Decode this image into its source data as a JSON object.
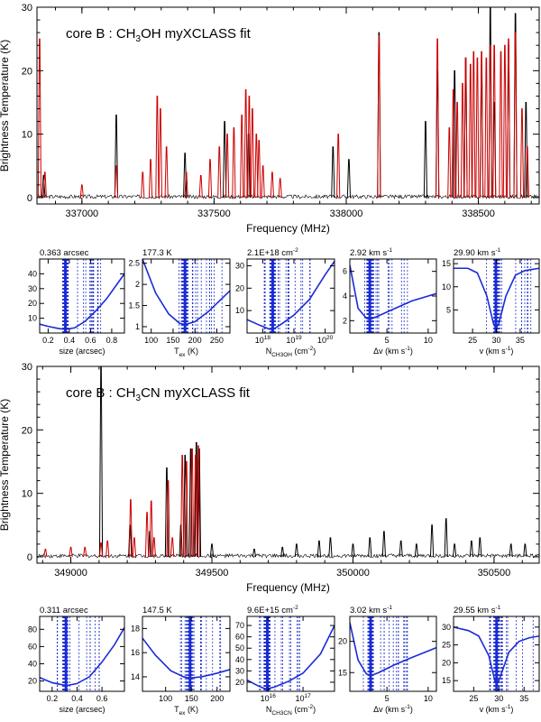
{
  "chart_data": [
    {
      "type": "line",
      "title": "core B : CH3OH myXCLASS fit",
      "title_parts": {
        "prefix": "core B : CH",
        "sub": "3",
        "suffix": "OH myXCLASS fit"
      },
      "xlabel": "Frequency (MHz)",
      "ylabel": "Brightness Temperature (K)",
      "xlim": [
        336830,
        338730
      ],
      "ylim": [
        -1,
        30
      ],
      "x_ticks": [
        337000,
        337500,
        338000,
        338500
      ],
      "y_ticks": [
        0,
        10,
        20,
        30
      ],
      "series": [
        {
          "name": "",
          "color": "#000000",
          "lines": [
            [
              336855,
              3.5
            ],
            [
              337130,
              13
            ],
            [
              337390,
              7
            ],
            [
              337540,
              12
            ],
            [
              337630,
              10
            ],
            [
              337950,
              8
            ],
            [
              338010,
              6
            ],
            [
              338124,
              26
            ],
            [
              338300,
              12
            ],
            [
              338345,
              20
            ],
            [
              338410,
              20
            ],
            [
              338452,
              22
            ],
            [
              338512,
              21
            ],
            [
              338545,
              30
            ],
            [
              338560,
              15
            ],
            [
              338614,
              24
            ],
            [
              338640,
              29
            ],
            [
              338680,
              15
            ]
          ]
        },
        {
          "name": "",
          "color": "#cc0000",
          "lines": [
            [
              336840,
              25
            ],
            [
              336860,
              4
            ],
            [
              337000,
              2
            ],
            [
              337130,
              5
            ],
            [
              337230,
              4
            ],
            [
              337260,
              6
            ],
            [
              337285,
              16
            ],
            [
              337297,
              14
            ],
            [
              337320,
              8
            ],
            [
              337395,
              4
            ],
            [
              337450,
              3.5
            ],
            [
              337485,
              6
            ],
            [
              337520,
              8
            ],
            [
              337550,
              10
            ],
            [
              337575,
              11
            ],
            [
              337605,
              13
            ],
            [
              337620,
              17
            ],
            [
              337633,
              16
            ],
            [
              337645,
              14
            ],
            [
              337660,
              10
            ],
            [
              337670,
              9
            ],
            [
              337685,
              5
            ],
            [
              337720,
              4
            ],
            [
              337750,
              3
            ],
            [
              337970,
              10
            ],
            [
              338124,
              25.5
            ],
            [
              338345,
              25
            ],
            [
              338390,
              11
            ],
            [
              338405,
              17
            ],
            [
              338420,
              15
            ],
            [
              338440,
              18
            ],
            [
              338452,
              22
            ],
            [
              338470,
              21
            ],
            [
              338482,
              23
            ],
            [
              338496,
              22
            ],
            [
              338512,
              23
            ],
            [
              338530,
              22
            ],
            [
              338545,
              24
            ],
            [
              338560,
              24
            ],
            [
              338585,
              23
            ],
            [
              338600,
              24
            ],
            [
              338614,
              25
            ],
            [
              338640,
              26
            ],
            [
              338665,
              14
            ],
            [
              338685,
              8
            ]
          ]
        }
      ]
    },
    {
      "type": "line",
      "title": "",
      "xlabel": "size (arcsec)",
      "header": "0.363 arcsec",
      "xlim": [
        0.12,
        0.92
      ],
      "ylim": [
        0,
        50
      ],
      "x_ticks": [
        0.2,
        0.4,
        0.6,
        0.8
      ],
      "y_ticks": [
        10,
        20,
        30,
        40
      ],
      "best": 0.363,
      "curve": [
        [
          0.12,
          6
        ],
        [
          0.2,
          4.5
        ],
        [
          0.3,
          3
        ],
        [
          0.363,
          2.5
        ],
        [
          0.45,
          3.5
        ],
        [
          0.55,
          8
        ],
        [
          0.65,
          15
        ],
        [
          0.75,
          23
        ],
        [
          0.85,
          33
        ],
        [
          0.92,
          40
        ]
      ]
    },
    {
      "type": "line",
      "title": "",
      "xlabel": "Tex (K)",
      "xlabel_parts": {
        "main": "T",
        "sub": "ex",
        "suffix": " (K)"
      },
      "header": "177.3 K",
      "xlim": [
        80,
        280
      ],
      "ylim": [
        0.85,
        2.6
      ],
      "x_ticks": [
        100,
        150,
        200,
        250
      ],
      "y_ticks": [
        1,
        1.5,
        2,
        2.5
      ],
      "best": 177.3,
      "curve": [
        [
          80,
          2.6
        ],
        [
          110,
          1.8
        ],
        [
          140,
          1.3
        ],
        [
          165,
          1.08
        ],
        [
          177.3,
          1.05
        ],
        [
          200,
          1.12
        ],
        [
          230,
          1.35
        ],
        [
          260,
          1.65
        ],
        [
          280,
          1.85
        ]
      ]
    },
    {
      "type": "line",
      "title": "",
      "xlabel": "N_CH3OH (cm^-2)",
      "xlabel_parts": {
        "main": "N",
        "sub": "CH3OH",
        "suffix": " (cm  )",
        "sup": "-2"
      },
      "header": "2.1E+18 cm-2",
      "header_parts": {
        "main": "2.1E+18 cm",
        "sup": "-2"
      },
      "xlog": true,
      "xlim": [
        17.5,
        20.3
      ],
      "ylim": [
        0,
        33
      ],
      "x_ticks": [
        18,
        19,
        20
      ],
      "x_tick_labels": [
        "10",
        "10",
        "10"
      ],
      "x_tick_exps": [
        "18",
        "19",
        "20"
      ],
      "y_ticks": [
        10,
        20,
        30
      ],
      "best": 18.32,
      "curve": [
        [
          17.5,
          6
        ],
        [
          17.9,
          3.5
        ],
        [
          18.2,
          1.8
        ],
        [
          18.32,
          1.5
        ],
        [
          18.6,
          4
        ],
        [
          19,
          8
        ],
        [
          19.5,
          15
        ],
        [
          20,
          26
        ],
        [
          20.3,
          32
        ]
      ]
    },
    {
      "type": "line",
      "title": "",
      "xlabel": "Δv (km s^-1)",
      "xlabel_parts": {
        "main": "Δv (km s",
        "sup": "-1",
        "suffix": ")"
      },
      "header": "2.92 km s-1",
      "header_parts": {
        "main": "2.92 km s",
        "sup": "-1"
      },
      "xlim": [
        0.5,
        11
      ],
      "ylim": [
        1,
        7
      ],
      "x_ticks": [
        5,
        10
      ],
      "y_ticks": [
        2,
        4,
        6
      ],
      "best": 2.92,
      "curve": [
        [
          0.5,
          6.5
        ],
        [
          1.5,
          3
        ],
        [
          2.5,
          2.2
        ],
        [
          2.92,
          2.1
        ],
        [
          4,
          2.4
        ],
        [
          6,
          3
        ],
        [
          8,
          3.6
        ],
        [
          11,
          4.2
        ]
      ]
    },
    {
      "type": "line",
      "title": "",
      "xlabel": "v (km s^-1)",
      "xlabel_parts": {
        "main": "v (km s",
        "sup": "-1",
        "suffix": ")"
      },
      "header": "29.90 km s-1",
      "header_parts": {
        "main": "29.90 km s",
        "sup": "-1"
      },
      "xlim": [
        21,
        39
      ],
      "ylim": [
        0,
        16
      ],
      "x_ticks": [
        25,
        30,
        35
      ],
      "y_ticks": [
        5,
        10,
        15
      ],
      "best": 29.9,
      "curve": [
        [
          21,
          14
        ],
        [
          24,
          14
        ],
        [
          26,
          13
        ],
        [
          28,
          8
        ],
        [
          29.4,
          2
        ],
        [
          29.9,
          1
        ],
        [
          30.5,
          2
        ],
        [
          32,
          8
        ],
        [
          34,
          12.5
        ],
        [
          36,
          13.5
        ],
        [
          39,
          14
        ]
      ]
    },
    {
      "type": "line",
      "title": "core B : CH3CN myXCLASS fit",
      "title_parts": {
        "prefix": "core B : CH",
        "sub": "3",
        "suffix": "CN myXCLASS fit"
      },
      "xlabel": "Frequency (MHz)",
      "ylabel": "Brightness Temperature (K)",
      "xlim": [
        348880,
        350660
      ],
      "ylim": [
        -1,
        30
      ],
      "x_ticks": [
        349000,
        349500,
        350000,
        350500
      ],
      "y_ticks": [
        0,
        10,
        20,
        30
      ],
      "series": [
        {
          "name": "",
          "color": "#000000",
          "lines": [
            [
              349107,
              30
            ],
            [
              349210,
              5
            ],
            [
              349280,
              4
            ],
            [
              349340,
              14
            ],
            [
              349390,
              5
            ],
            [
              349405,
              16
            ],
            [
              349425,
              17
            ],
            [
              349445,
              18
            ],
            [
              349455,
              17
            ],
            [
              349500,
              2
            ],
            [
              349650,
              1.2
            ],
            [
              349750,
              1.5
            ],
            [
              349800,
              2
            ],
            [
              349880,
              2.5
            ],
            [
              349920,
              3
            ],
            [
              350000,
              2
            ],
            [
              350060,
              3
            ],
            [
              350110,
              4
            ],
            [
              350170,
              2.5
            ],
            [
              350225,
              2
            ],
            [
              350280,
              5
            ],
            [
              350330,
              6
            ],
            [
              350360,
              2
            ],
            [
              350420,
              2.5
            ],
            [
              350450,
              3
            ],
            [
              350560,
              2
            ],
            [
              350610,
              2
            ]
          ]
        },
        {
          "name": "",
          "color": "#cc0000",
          "lines": [
            [
              348910,
              1.2
            ],
            [
              349000,
              1.5
            ],
            [
              349050,
              1.5
            ],
            [
              349107,
              2.2
            ],
            [
              349130,
              2.5
            ],
            [
              349212,
              9
            ],
            [
              349225,
              3
            ],
            [
              349270,
              7
            ],
            [
              349285,
              8.8
            ],
            [
              349295,
              3
            ],
            [
              349345,
              12
            ],
            [
              349360,
              3
            ],
            [
              349395,
              16
            ],
            [
              349410,
              15
            ],
            [
              349430,
              17
            ],
            [
              349442,
              16
            ],
            [
              349452,
              17.5
            ]
          ]
        }
      ]
    },
    {
      "type": "line",
      "title": "",
      "xlabel": "size (arcsec)",
      "header": "0.311 arcsec",
      "xlim": [
        0.1,
        0.78
      ],
      "ylim": [
        8,
        95
      ],
      "x_ticks": [
        0.2,
        0.4,
        0.6
      ],
      "y_ticks": [
        20,
        40,
        60,
        80
      ],
      "best": 0.311,
      "curve": [
        [
          0.1,
          24
        ],
        [
          0.2,
          18
        ],
        [
          0.3,
          15
        ],
        [
          0.311,
          14.5
        ],
        [
          0.4,
          17
        ],
        [
          0.5,
          25
        ],
        [
          0.6,
          42
        ],
        [
          0.7,
          62
        ],
        [
          0.78,
          82
        ]
      ]
    },
    {
      "type": "line",
      "title": "",
      "xlabel": "Tex (K)",
      "xlabel_parts": {
        "main": "T",
        "sub": "ex",
        "suffix": " (K)"
      },
      "header": "147.5 K",
      "xlim": [
        55,
        225
      ],
      "ylim": [
        12.8,
        19
      ],
      "x_ticks": [
        100,
        150,
        200
      ],
      "y_ticks": [
        14,
        16,
        18
      ],
      "best": 147.5,
      "curve": [
        [
          55,
          17.2
        ],
        [
          80,
          15.8
        ],
        [
          110,
          14.5
        ],
        [
          135,
          14.0
        ],
        [
          147.5,
          13.9
        ],
        [
          170,
          14.0
        ],
        [
          200,
          14.3
        ],
        [
          225,
          14.6
        ]
      ]
    },
    {
      "type": "line",
      "title": "",
      "xlabel": "N_CH3CN (cm^-2)",
      "xlabel_parts": {
        "main": "N",
        "sub": "CH3CN",
        "suffix": " (cm  )",
        "sup": "-2"
      },
      "header": "9.6E+15 cm-2",
      "header_parts": {
        "main": "9.6E+15 cm",
        "sup": "-2"
      },
      "xlog": true,
      "xlim": [
        15.4,
        17.9
      ],
      "ylim": [
        12,
        78
      ],
      "x_ticks": [
        16,
        17
      ],
      "x_tick_labels": [
        "10",
        "10"
      ],
      "x_tick_exps": [
        "16",
        "17"
      ],
      "y_ticks": [
        20,
        30,
        40,
        50,
        60,
        70
      ],
      "best": 15.98,
      "curve": [
        [
          15.4,
          22
        ],
        [
          15.7,
          17
        ],
        [
          15.9,
          14.5
        ],
        [
          15.98,
          14.2
        ],
        [
          16.2,
          16
        ],
        [
          16.6,
          21
        ],
        [
          17,
          28
        ],
        [
          17.5,
          45
        ],
        [
          17.9,
          70
        ]
      ]
    },
    {
      "type": "line",
      "title": "",
      "xlabel": "Δv (km s^-1)",
      "xlabel_parts": {
        "main": "Δv (km s",
        "sup": "-1",
        "suffix": ")"
      },
      "header": "3.02 km s-1",
      "header_parts": {
        "main": "3.02 km s",
        "sup": "-1"
      },
      "xlim": [
        0.5,
        11
      ],
      "ylim": [
        12,
        24
      ],
      "x_ticks": [
        5,
        10
      ],
      "y_ticks": [
        15,
        20
      ],
      "best": 3.02,
      "curve": [
        [
          0.5,
          23
        ],
        [
          1.5,
          17
        ],
        [
          2.5,
          14.8
        ],
        [
          3.02,
          14.5
        ],
        [
          4,
          15
        ],
        [
          6,
          16.3
        ],
        [
          8,
          17.4
        ],
        [
          11,
          19
        ]
      ]
    },
    {
      "type": "line",
      "title": "",
      "xlabel": "v (km s^-1)",
      "xlabel_parts": {
        "main": "v (km s",
        "sup": "-1",
        "suffix": ")"
      },
      "header": "29.55 km s-1",
      "header_parts": {
        "main": "29.55 km s",
        "sup": "-1"
      },
      "xlim": [
        21,
        38
      ],
      "ylim": [
        12,
        33
      ],
      "x_ticks": [
        25,
        30,
        35
      ],
      "y_ticks": [
        15,
        20,
        25,
        30
      ],
      "best": 29.55,
      "curve": [
        [
          21,
          30
        ],
        [
          24,
          29
        ],
        [
          26,
          27.5
        ],
        [
          28,
          22
        ],
        [
          29.2,
          15
        ],
        [
          29.55,
          14
        ],
        [
          30,
          15
        ],
        [
          32,
          23
        ],
        [
          34,
          26
        ],
        [
          36,
          27
        ],
        [
          38,
          27.5
        ]
      ]
    }
  ]
}
